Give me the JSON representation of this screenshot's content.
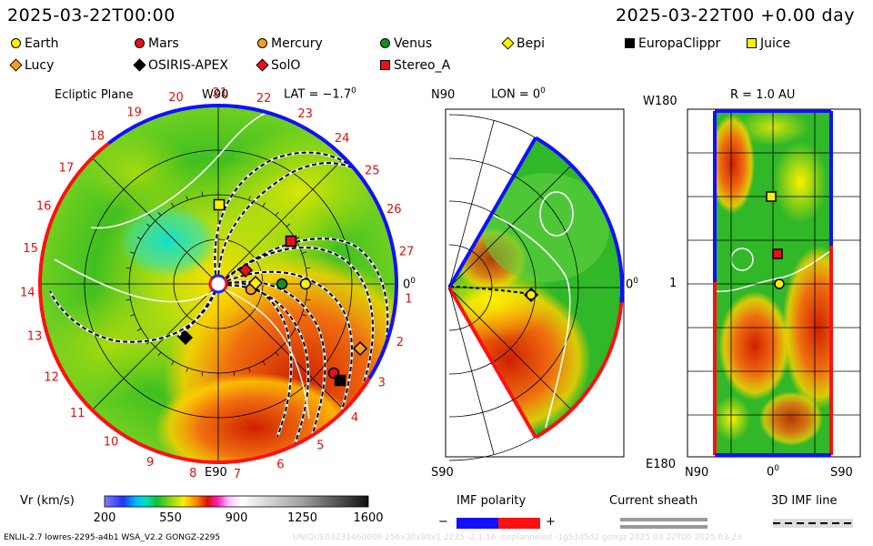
{
  "header": {
    "left_time": "2025-03-22T00:00",
    "right_time": "2025-03-22T00 +0.00 day"
  },
  "legend": [
    {
      "label": "Earth",
      "shape": "circle",
      "color": "#ffee00"
    },
    {
      "label": "Mars",
      "shape": "circle",
      "color": "#e8101a"
    },
    {
      "label": "Mercury",
      "shape": "circle",
      "color": "#f5a020"
    },
    {
      "label": "Venus",
      "shape": "circle",
      "color": "#109020"
    },
    {
      "label": "Bepi",
      "shape": "diamond",
      "color": "#ffee00"
    },
    {
      "label": "EuropaClippr",
      "shape": "square",
      "color": "#000000"
    },
    {
      "label": "Juice",
      "shape": "square",
      "color": "#ffee00"
    },
    {
      "label": "Lucy",
      "shape": "diamond",
      "color": "#f5a020"
    },
    {
      "label": "OSIRIS-APEX",
      "shape": "diamond",
      "color": "#000000"
    },
    {
      "label": "SolO",
      "shape": "diamond",
      "color": "#e8101a"
    },
    {
      "label": "Stereo_A",
      "shape": "square",
      "color": "#e8101a"
    }
  ],
  "panels": {
    "ecliptic": {
      "title": "Ecliptic Plane",
      "top_label": "W90",
      "bottom_label": "E90",
      "right_label": "0",
      "lat_label": "LAT = −1.7",
      "lat_sup": "0",
      "carrington_ticks": [
        "1",
        "2",
        "3",
        "4",
        "5",
        "6",
        "7",
        "8",
        "9",
        "10",
        "11",
        "12",
        "13",
        "14",
        "15",
        "16",
        "17",
        "18",
        "19",
        "20",
        "21",
        "22",
        "23",
        "24",
        "25",
        "26",
        "27"
      ]
    },
    "meridional": {
      "top_label": "N90",
      "bottom_label": "S90",
      "right_label": "0",
      "right_sup": "0",
      "lon_label": "LON = 0",
      "lon_sup": "0"
    },
    "map": {
      "title": "R = 1.0 AU",
      "top_left": "W180",
      "mid_left": "1",
      "bottom_left": "E180",
      "x_left": "N90",
      "x_mid": "0",
      "x_mid_sup": "0",
      "x_right": "S90"
    }
  },
  "colorbar": {
    "label": "Vr (km/s)",
    "ticks": [
      "200",
      "550",
      "900",
      "1250",
      "1600"
    ]
  },
  "imf": {
    "title": "IMF polarity",
    "minus": "−",
    "plus": "+"
  },
  "sheath": {
    "title": "Current sheath"
  },
  "imf3d": {
    "title": "3D IMF line"
  },
  "footer": {
    "left": "ENLIL-2.7 lowres-2295-a4b1 WSA_V2.2 GONGZ-2295",
    "right": "UNIQUE03231460006 256x30x90x1 2235 -2.1.16 -noplanneled -1g53d5d2 gongz 2025 03 22T00 2025-03-23"
  },
  "chart_data": {
    "type": "heatmap",
    "quantity": "Vr (km/s)",
    "color_range": [
      200,
      1600
    ],
    "colorbar_ticks": [
      200,
      550,
      900,
      1250,
      1600
    ],
    "ecliptic_lat_deg": -1.7,
    "meridional_lon_deg": 0,
    "map_radius_au": 1.0,
    "imf_polarity": [
      "−",
      "+"
    ]
  }
}
